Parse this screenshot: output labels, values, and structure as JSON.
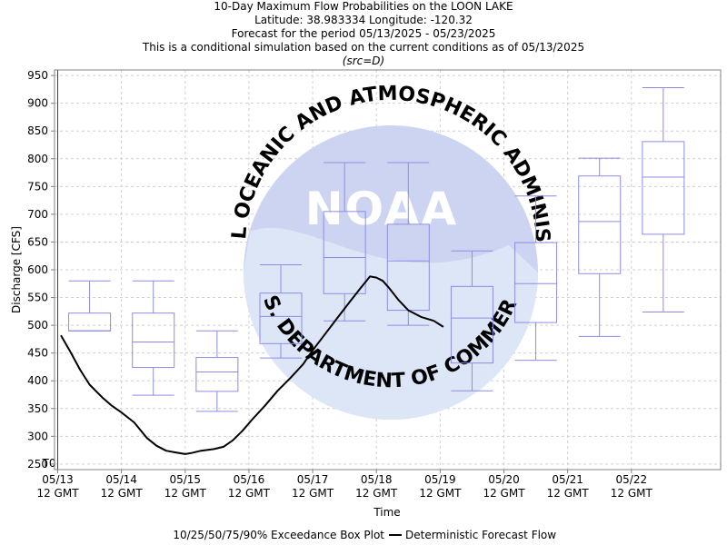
{
  "header": {
    "line1": "10-Day Maximum Flow Probabilities on the LOON LAKE",
    "line2": "Latitude: 38.983334 Longitude: -120.32",
    "line3": "Forecast for the period 05/13/2025 - 05/23/2025",
    "line4": "This is a conditional simulation based on the current conditions as of 05/13/2025",
    "src": "(src=D)"
  },
  "watermark": {
    "logo_text": "NOAA",
    "ring_top": "NATIONAL OCEANIC AND ATMOSPHERIC ADMINISTRATION",
    "ring_bottom": "U.S. DEPARTMENT OF COMMERCE"
  },
  "chart_data": {
    "type": "box",
    "ylabel": "Discharge [CFS]",
    "xlabel": "Time",
    "ylim": [
      240,
      960
    ],
    "xlim": [
      -0.05,
      10.4
    ],
    "yticks": [
      250,
      300,
      350,
      400,
      450,
      500,
      550,
      600,
      650,
      700,
      750,
      800,
      850,
      900,
      950
    ],
    "xticks": [
      {
        "x": 0,
        "label": "05/13",
        "sub": "12 GMT"
      },
      {
        "x": 1,
        "label": "05/14",
        "sub": "12 GMT"
      },
      {
        "x": 2,
        "label": "05/15",
        "sub": "12 GMT"
      },
      {
        "x": 3,
        "label": "05/16",
        "sub": "12 GMT"
      },
      {
        "x": 4,
        "label": "05/17",
        "sub": "12 GMT"
      },
      {
        "x": 5,
        "label": "05/18",
        "sub": "12 GMT"
      },
      {
        "x": 6,
        "label": "05/19",
        "sub": "12 GMT"
      },
      {
        "x": 7,
        "label": "05/20",
        "sub": "12 GMT"
      },
      {
        "x": 8,
        "label": "05/21",
        "sub": "12 GMT"
      },
      {
        "x": 9,
        "label": "05/22",
        "sub": "12 GMT"
      }
    ],
    "grid": true,
    "t0": {
      "x": 0,
      "label": "T0"
    },
    "boxes": [
      {
        "x": 0.5,
        "p10": 490,
        "p25": 490,
        "p50": 490,
        "p75": 522,
        "p90": 580
      },
      {
        "x": 1.5,
        "p10": 374,
        "p25": 424,
        "p50": 470,
        "p75": 522,
        "p90": 580
      },
      {
        "x": 2.5,
        "p10": 345,
        "p25": 381,
        "p50": 416,
        "p75": 442,
        "p90": 490
      },
      {
        "x": 3.5,
        "p10": 441,
        "p25": 467,
        "p50": 516,
        "p75": 558,
        "p90": 609
      },
      {
        "x": 4.5,
        "p10": 508,
        "p25": 557,
        "p50": 622,
        "p75": 705,
        "p90": 793
      },
      {
        "x": 5.5,
        "p10": 500,
        "p25": 527,
        "p50": 616,
        "p75": 682,
        "p90": 793
      },
      {
        "x": 6.5,
        "p10": 382,
        "p25": 432,
        "p50": 513,
        "p75": 570,
        "p90": 634
      },
      {
        "x": 7.5,
        "p10": 437,
        "p25": 505,
        "p50": 575,
        "p75": 649,
        "p90": 733
      },
      {
        "x": 8.5,
        "p10": 480,
        "p25": 593,
        "p50": 687,
        "p75": 769,
        "p90": 801
      },
      {
        "x": 9.5,
        "p10": 524,
        "p25": 664,
        "p50": 767,
        "p75": 831,
        "p90": 928
      }
    ],
    "deterministic": {
      "x": [
        0.05,
        0.2,
        0.35,
        0.5,
        0.7,
        0.85,
        1.0,
        1.2,
        1.4,
        1.55,
        1.7,
        1.85,
        2.0,
        2.1,
        2.25,
        2.45,
        2.6,
        2.75,
        2.9,
        3.05,
        3.25,
        3.45,
        3.65,
        3.85,
        4.0,
        4.2,
        4.4,
        4.6,
        4.75,
        4.9,
        5.0,
        5.1,
        5.2,
        5.35,
        5.5,
        5.7,
        5.9,
        6.05
      ],
      "y": [
        482,
        452,
        420,
        393,
        370,
        355,
        343,
        325,
        297,
        283,
        274,
        271,
        268,
        270,
        274,
        277,
        281,
        293,
        310,
        330,
        355,
        382,
        405,
        430,
        455,
        485,
        515,
        545,
        567,
        588,
        586,
        580,
        567,
        545,
        527,
        515,
        508,
        497
      ]
    },
    "legend": {
      "box_label": "10/25/50/75/90% Exceedance Box Plot",
      "line_label": "Deterministic Forecast Flow"
    },
    "colors": {
      "box": "#8c8ce6",
      "line": "#000000",
      "t0": "#3333aa",
      "grid": "#d0d0d0",
      "wm_light": "#dde6f7",
      "wm_dark": "#cdd4f2",
      "wm_text": "#c9d2ee"
    }
  }
}
